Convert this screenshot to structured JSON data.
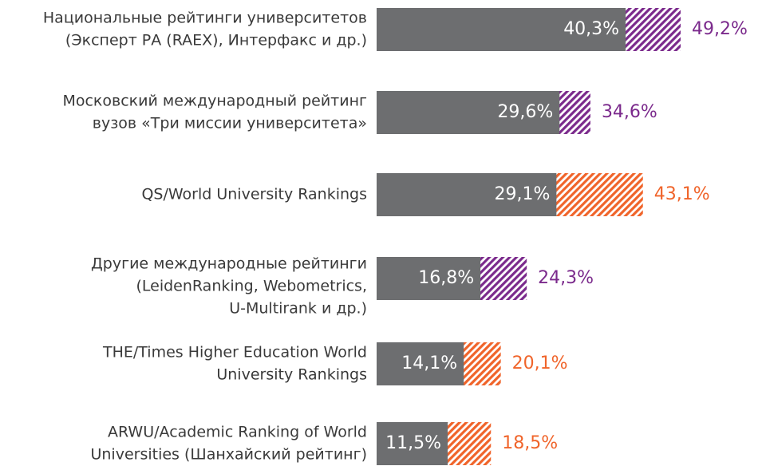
{
  "chart_data": {
    "type": "overlay-bar",
    "categories": [
      [
        "Национальные рейтинги университетов",
        "(Эксперт РА (RAEX), Интерфакс и др.)"
      ],
      [
        "Московский международный рейтинг",
        "вузов «Три миссии университета»"
      ],
      [
        "QS/World University Rankings"
      ],
      [
        "Другие международные рейтинги",
        "(LeidenRanking, Webometrics,",
        "U-Multirank и др.)"
      ],
      [
        "THE/Times Higher Education World",
        "University Rankings"
      ],
      [
        "ARWU/Academic Ranking of World",
        "Universities (Шанхайский рейтинг)"
      ]
    ],
    "series": [
      {
        "color": "#6d6e70",
        "values": [
          40.3,
          29.6,
          29.1,
          16.8,
          14.1,
          11.5
        ],
        "value_labels": [
          "40,3%",
          "29,6%",
          "29,1%",
          "16,8%",
          "14,1%",
          "11,5%"
        ]
      },
      {
        "colors": [
          "#7b2a8c",
          "#7b2a8c",
          "#f0642a",
          "#7b2a8c",
          "#f0642a",
          "#f0642a"
        ],
        "values": [
          49.2,
          34.6,
          43.1,
          24.3,
          20.1,
          18.5
        ],
        "value_labels": [
          "49,2%",
          "34,6%",
          "43,1%",
          "24,3%",
          "20,1%",
          "18,5%"
        ],
        "hatched": true
      }
    ]
  }
}
